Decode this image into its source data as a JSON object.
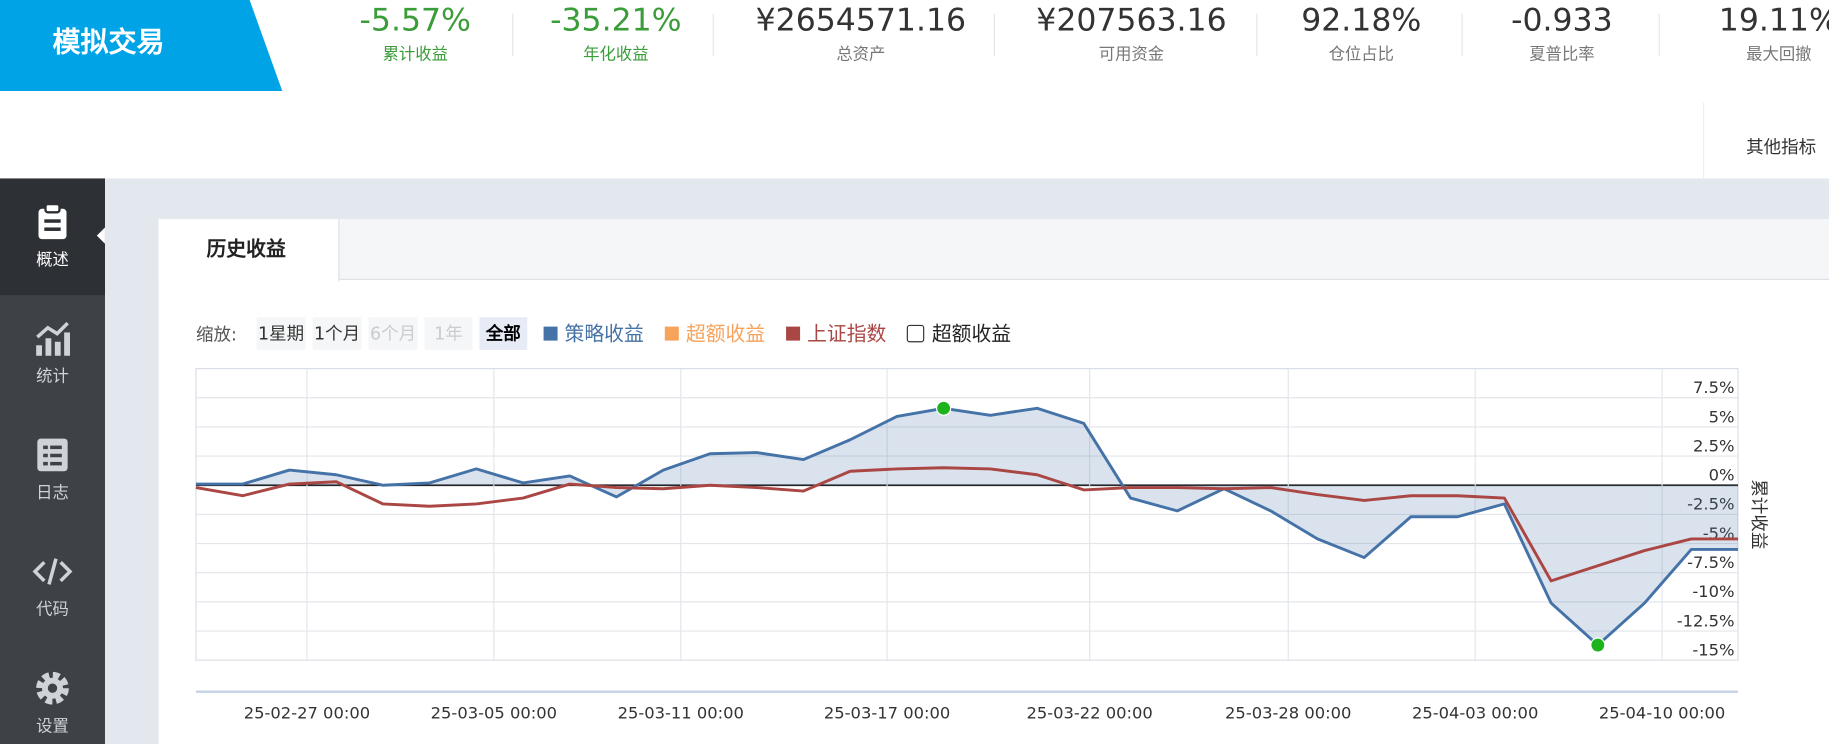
{
  "header": {
    "title": "模拟交易",
    "stats": [
      {
        "value": "-5.57%",
        "label": "累计收益"
      },
      {
        "value": "-35.21%",
        "label": "年化收益"
      },
      {
        "value": "¥2654571.16",
        "label": "总资产"
      },
      {
        "value": "¥207563.16",
        "label": "可用资金"
      },
      {
        "value": "92.18%",
        "label": "仓位占比"
      },
      {
        "value": "-0.933",
        "label": "夏普比率"
      },
      {
        "value": "19.11%",
        "label": "最大回撤"
      }
    ],
    "other_metrics": "其他指标"
  },
  "sidebar": [
    "概述",
    "统计",
    "日志",
    "代码",
    "设置"
  ],
  "tabs": [
    "历史收益"
  ],
  "zoom": {
    "label": "缩放:",
    "buttons": [
      "1星期",
      "1个月",
      "6个月",
      "1年",
      "全部"
    ]
  },
  "chart_data": {
    "type": "line",
    "y_axis_title": "累计收益",
    "xlim": [
      0,
      33
    ],
    "xticks": [
      {
        "value": 2.375,
        "label": "25-02-27 00:00"
      },
      {
        "value": 6.375,
        "label": "25-03-05 00:00"
      },
      {
        "value": 10.375,
        "label": "25-03-11 00:00"
      },
      {
        "value": 14.79,
        "label": "25-03-17 00:00"
      },
      {
        "value": 19.125,
        "label": "25-03-22 00:00"
      },
      {
        "value": 23.375,
        "label": "25-03-28 00:00"
      },
      {
        "value": 27.375,
        "label": "25-04-03 00:00"
      },
      {
        "value": 31.375,
        "label": "25-04-10 00:00"
      }
    ],
    "ylim": [
      -15,
      10
    ],
    "yticks": [
      {
        "value": 7.5,
        "label": "7.5%"
      },
      {
        "value": 5,
        "label": "5%"
      },
      {
        "value": 2.5,
        "label": "2.5%"
      },
      {
        "value": 0,
        "label": "0%"
      },
      {
        "value": -2.5,
        "label": "-2.5%"
      },
      {
        "value": -5,
        "label": "-5%"
      },
      {
        "value": -7.5,
        "label": "-7.5%"
      },
      {
        "value": -10,
        "label": "-10%"
      },
      {
        "value": -12.5,
        "label": "-12.5%"
      },
      {
        "value": -15,
        "label": "-15%"
      }
    ],
    "grid": true,
    "series": [
      {
        "name": "策略收益",
        "color": "#4572a7",
        "area": true,
        "values": [
          0.1,
          0.1,
          1.3,
          0.9,
          0,
          0.2,
          1.4,
          0.2,
          0.8,
          -1.0,
          1.3,
          2.7,
          2.8,
          2.2,
          3.9,
          5.9,
          6.6,
          6.0,
          6.6,
          5.3,
          -1.1,
          -2.2,
          -0.3,
          -2.2,
          -4.6,
          -6.2,
          -2.7,
          -2.7,
          -1.6,
          -10.1,
          -13.7,
          -10.1,
          -5.5,
          -5.5
        ]
      },
      {
        "name": "上证指数",
        "color": "#aa4643",
        "values": [
          -0.2,
          -0.9,
          0.1,
          0.3,
          -1.6,
          -1.8,
          -1.6,
          -1.1,
          0.1,
          -0.2,
          -0.3,
          0,
          -0.2,
          -0.5,
          1.2,
          1.4,
          1.5,
          1.4,
          0.9,
          -0.4,
          -0.2,
          -0.2,
          -0.3,
          -0.2,
          -0.8,
          -1.3,
          -0.9,
          -0.9,
          -1.1,
          -8.2,
          -6.9,
          -5.6,
          -4.6,
          -4.6
        ]
      }
    ],
    "legend_only": [
      {
        "name": "超额收益",
        "color": "#f7a35c"
      }
    ],
    "checkbox_label": "超额收益",
    "extreme_marker_color": "#1db31d"
  }
}
